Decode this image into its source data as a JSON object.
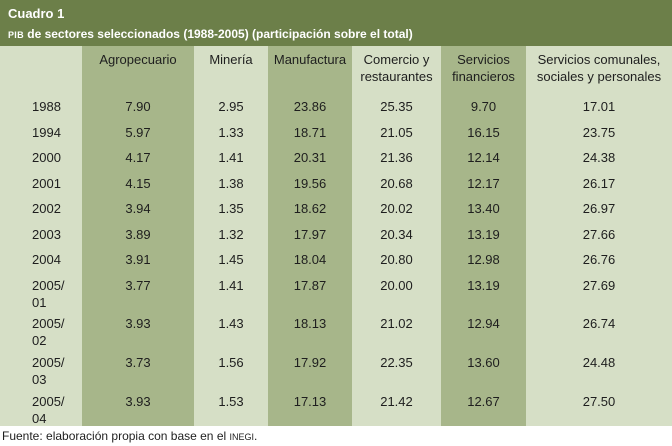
{
  "table": {
    "title": "Cuadro 1",
    "subtitle_prefix": "PIB",
    "subtitle_rest": " de sectores seleccionados (1988-2005) (participación sobre el total)",
    "columns": [
      "",
      "Agropecuario",
      "Minería",
      "Manufactura",
      "Comercio y restaurantes",
      "Servicios financieros",
      "Servicios comunales, sociales y personales"
    ],
    "rows": [
      {
        "year": "1988",
        "values": [
          "7.90",
          "2.95",
          "23.86",
          "25.35",
          "9.70",
          "17.01"
        ]
      },
      {
        "year": "1994",
        "values": [
          "5.97",
          "1.33",
          "18.71",
          "21.05",
          "16.15",
          "23.75"
        ]
      },
      {
        "year": "2000",
        "values": [
          "4.17",
          "1.41",
          "20.31",
          "21.36",
          "12.14",
          "24.38"
        ]
      },
      {
        "year": "2001",
        "values": [
          "4.15",
          "1.38",
          "19.56",
          "20.68",
          "12.17",
          "26.17"
        ]
      },
      {
        "year": "2002",
        "values": [
          "3.94",
          "1.35",
          "18.62",
          "20.02",
          "13.40",
          "26.97"
        ]
      },
      {
        "year": "2003",
        "values": [
          "3.89",
          "1.32",
          "17.97",
          "20.34",
          "13.19",
          "27.66"
        ]
      },
      {
        "year": "2004",
        "values": [
          "3.91",
          "1.45",
          "18.04",
          "20.80",
          "12.98",
          "26.76"
        ]
      },
      {
        "year": "2005/ 01",
        "values": [
          "3.77",
          "1.41",
          "17.87",
          "20.00",
          "13.19",
          "27.69"
        ]
      },
      {
        "year": "2005/ 02",
        "values": [
          "3.93",
          "1.43",
          "18.13",
          "21.02",
          "12.94",
          "26.74"
        ]
      },
      {
        "year": "2005/ 03",
        "values": [
          "3.73",
          "1.56",
          "17.92",
          "22.35",
          "13.60",
          "24.48"
        ]
      },
      {
        "year": "2005/ 04",
        "values": [
          "3.93",
          "1.53",
          "17.13",
          "21.42",
          "12.67",
          "27.50"
        ]
      }
    ],
    "footer_prefix": "Fuente: elaboración propia con base en el ",
    "footer_suffix": "INEGI",
    "footer_end": "."
  }
}
